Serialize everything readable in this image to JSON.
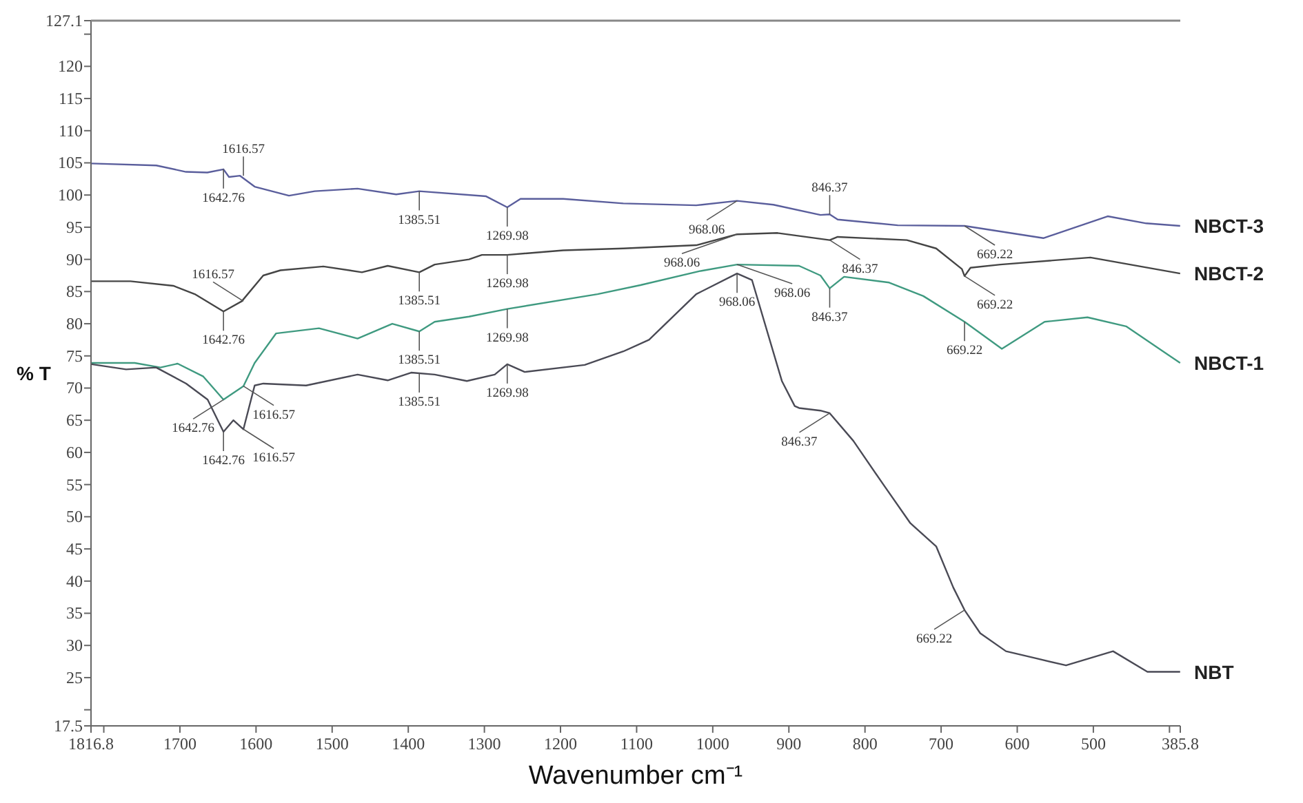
{
  "chart_data": {
    "type": "line",
    "xlabel": "Wavenumber cm⁻¹",
    "ylabel": "% T",
    "xlim": [
      1816.8,
      385.8
    ],
    "ylim": [
      17.5,
      127.1
    ],
    "xticks": [
      1816.8,
      {
        "value": 1800,
        "label": null
      },
      1700,
      1600,
      1500,
      1400,
      1300,
      1200,
      1100,
      1000,
      900,
      800,
      700,
      600,
      500,
      {
        "value": 400,
        "label": null
      },
      385.8
    ],
    "yticks": [
      17.5,
      {
        "value": 20,
        "label": null
      },
      25,
      30,
      35,
      40,
      45,
      50,
      55,
      60,
      65,
      70,
      75,
      80,
      85,
      90,
      95,
      100,
      105,
      110,
      115,
      120,
      {
        "value": 125,
        "label": null
      },
      127.1
    ],
    "grid": false,
    "series": [
      {
        "name": "NBCT-3",
        "color": "#5a5e9c",
        "x": [
          1816,
          1731,
          1692,
          1664,
          1642.76,
          1635.5,
          1621,
          1601.8,
          1556.7,
          1522.9,
          1466.6,
          1415.9,
          1385.51,
          1297.7,
          1269.98,
          1252.6,
          1196.4,
          1117.5,
          1021.7,
          968.06,
          920.4,
          858.5,
          846.37,
          835.9,
          757,
          669.22,
          565.7,
          481.2,
          430.5,
          386
        ],
        "values": [
          104.9,
          104.6,
          103.6,
          103.5,
          104.0,
          102.8,
          103.0,
          101.3,
          99.9,
          100.6,
          101.0,
          100.1,
          100.6,
          99.8,
          98.1,
          99.4,
          99.4,
          98.7,
          98.4,
          99.1,
          98.5,
          96.9,
          97.0,
          96.2,
          95.3,
          95.2,
          93.3,
          96.7,
          95.6,
          95.2
        ]
      },
      {
        "name": "NBCT-2",
        "color": "#454545",
        "x": [
          1816,
          1765,
          1708.7,
          1680.5,
          1642.76,
          1618.7,
          1590.5,
          1568,
          1511.6,
          1460.9,
          1427,
          1385.51,
          1365.3,
          1320.2,
          1303.3,
          1269.98,
          1196.4,
          1117.5,
          1021.7,
          968.06,
          914.8,
          846.37,
          835.9,
          745,
          706.5,
          672.7,
          669.22,
          661.4,
          622,
          503.9,
          386
        ],
        "values": [
          86.6,
          86.6,
          85.9,
          84.6,
          81.9,
          83.5,
          87.5,
          88.3,
          88.9,
          88.0,
          89.0,
          88.0,
          89.2,
          90.0,
          90.7,
          90.7,
          91.4,
          91.7,
          92.2,
          93.9,
          94.1,
          93.0,
          93.5,
          93.0,
          91.7,
          88.5,
          87.4,
          88.7,
          89.2,
          90.3,
          87.8
        ]
      },
      {
        "name": "NBCT-1",
        "color": "#3f9a80",
        "x": [
          1816,
          1759.4,
          1725.6,
          1703,
          1669.3,
          1642.76,
          1616.57,
          1601.8,
          1573.6,
          1517.3,
          1466.6,
          1421,
          1385.51,
          1365.3,
          1320.2,
          1269.98,
          1151.3,
          1095,
          1016,
          968.06,
          886.6,
          858.5,
          846.37,
          827.5,
          768.3,
          723.4,
          669.22,
          620.2,
          564,
          507.7,
          457,
          386
        ],
        "values": [
          73.9,
          73.9,
          73.2,
          73.8,
          71.8,
          68.2,
          70.3,
          73.9,
          78.5,
          79.3,
          77.7,
          80.0,
          78.8,
          80.3,
          81.1,
          82.3,
          84.6,
          86.0,
          88.2,
          89.2,
          89.0,
          87.5,
          85.5,
          87.3,
          86.4,
          84.3,
          80.3,
          76.1,
          80.3,
          81.0,
          79.6,
          73.9
        ]
      },
      {
        "name": "NBT",
        "color": "#4a4a55",
        "x": [
          1816,
          1770.7,
          1731.2,
          1691.8,
          1663.6,
          1642.76,
          1629.8,
          1616.57,
          1601.8,
          1590.5,
          1534.2,
          1466.6,
          1427,
          1396.2,
          1365.3,
          1323,
          1286.4,
          1269.98,
          1247,
          1168.2,
          1117.5,
          1083.7,
          1021.7,
          968.06,
          948.5,
          909.2,
          892.3,
          886.6,
          858.5,
          846.37,
          815.3,
          774.1,
          740.4,
          706.5,
          684,
          669.22,
          648.6,
          614.8,
          575.4,
          535.9,
          474.1,
          429,
          386
        ],
        "values": [
          73.7,
          72.9,
          73.2,
          70.7,
          68.2,
          63.2,
          65.0,
          63.6,
          70.4,
          70.7,
          70.4,
          72.1,
          71.2,
          72.4,
          72.1,
          71.1,
          72.1,
          73.7,
          72.5,
          73.6,
          75.7,
          77.5,
          84.6,
          87.8,
          86.8,
          71.1,
          67.2,
          66.9,
          66.5,
          66.1,
          61.8,
          54.7,
          49.0,
          45.4,
          39.0,
          35.5,
          31.9,
          29.1,
          28.0,
          26.9,
          29.1,
          25.9,
          25.9
        ]
      }
    ],
    "annotations": [
      {
        "text": "1642.76",
        "x": 1642.76,
        "y": 104.0
      },
      {
        "text": "1616.57",
        "x": 1616.57,
        "y": 103.0
      },
      {
        "text": "1385.51",
        "x": 1385.51,
        "y": 100.6
      },
      {
        "text": "1269.98",
        "x": 1269.98,
        "y": 98.1
      },
      {
        "text": "968.06",
        "x": 968.06,
        "y": 99.1
      },
      {
        "text": "846.37",
        "x": 846.37,
        "y": 97.0
      },
      {
        "text": "669.22",
        "x": 669.22,
        "y": 95.2
      },
      {
        "text": "1642.76",
        "x": 1642.76,
        "y": 81.9
      },
      {
        "text": "1616.57",
        "x": 1616.57,
        "y": 83.5
      },
      {
        "text": "1385.51",
        "x": 1385.51,
        "y": 88.0
      },
      {
        "text": "1269.98",
        "x": 1269.98,
        "y": 90.7
      },
      {
        "text": "968.06",
        "x": 968.06,
        "y": 93.9
      },
      {
        "text": "846.37",
        "x": 846.37,
        "y": 93.0
      },
      {
        "text": "669.22",
        "x": 669.22,
        "y": 87.4
      },
      {
        "text": "1642.76",
        "x": 1642.76,
        "y": 68.2
      },
      {
        "text": "1616.57",
        "x": 1616.57,
        "y": 70.3
      },
      {
        "text": "1385.51",
        "x": 1385.51,
        "y": 78.8
      },
      {
        "text": "1269.98",
        "x": 1269.98,
        "y": 82.3
      },
      {
        "text": "968.06",
        "x": 968.06,
        "y": 89.2
      },
      {
        "text": "846.37",
        "x": 846.37,
        "y": 85.5
      },
      {
        "text": "669.22",
        "x": 669.22,
        "y": 80.3
      },
      {
        "text": "1642.76",
        "x": 1642.76,
        "y": 63.2
      },
      {
        "text": "1616.57",
        "x": 1616.57,
        "y": 63.6
      },
      {
        "text": "1385.51",
        "x": 1385.51,
        "y": 72.3
      },
      {
        "text": "1269.98",
        "x": 1269.98,
        "y": 73.7
      },
      {
        "text": "968.06",
        "x": 968.06,
        "y": 87.8
      },
      {
        "text": "846.37",
        "x": 846.37,
        "y": 66.1
      },
      {
        "text": "669.22",
        "x": 669.22,
        "y": 35.5
      }
    ]
  }
}
